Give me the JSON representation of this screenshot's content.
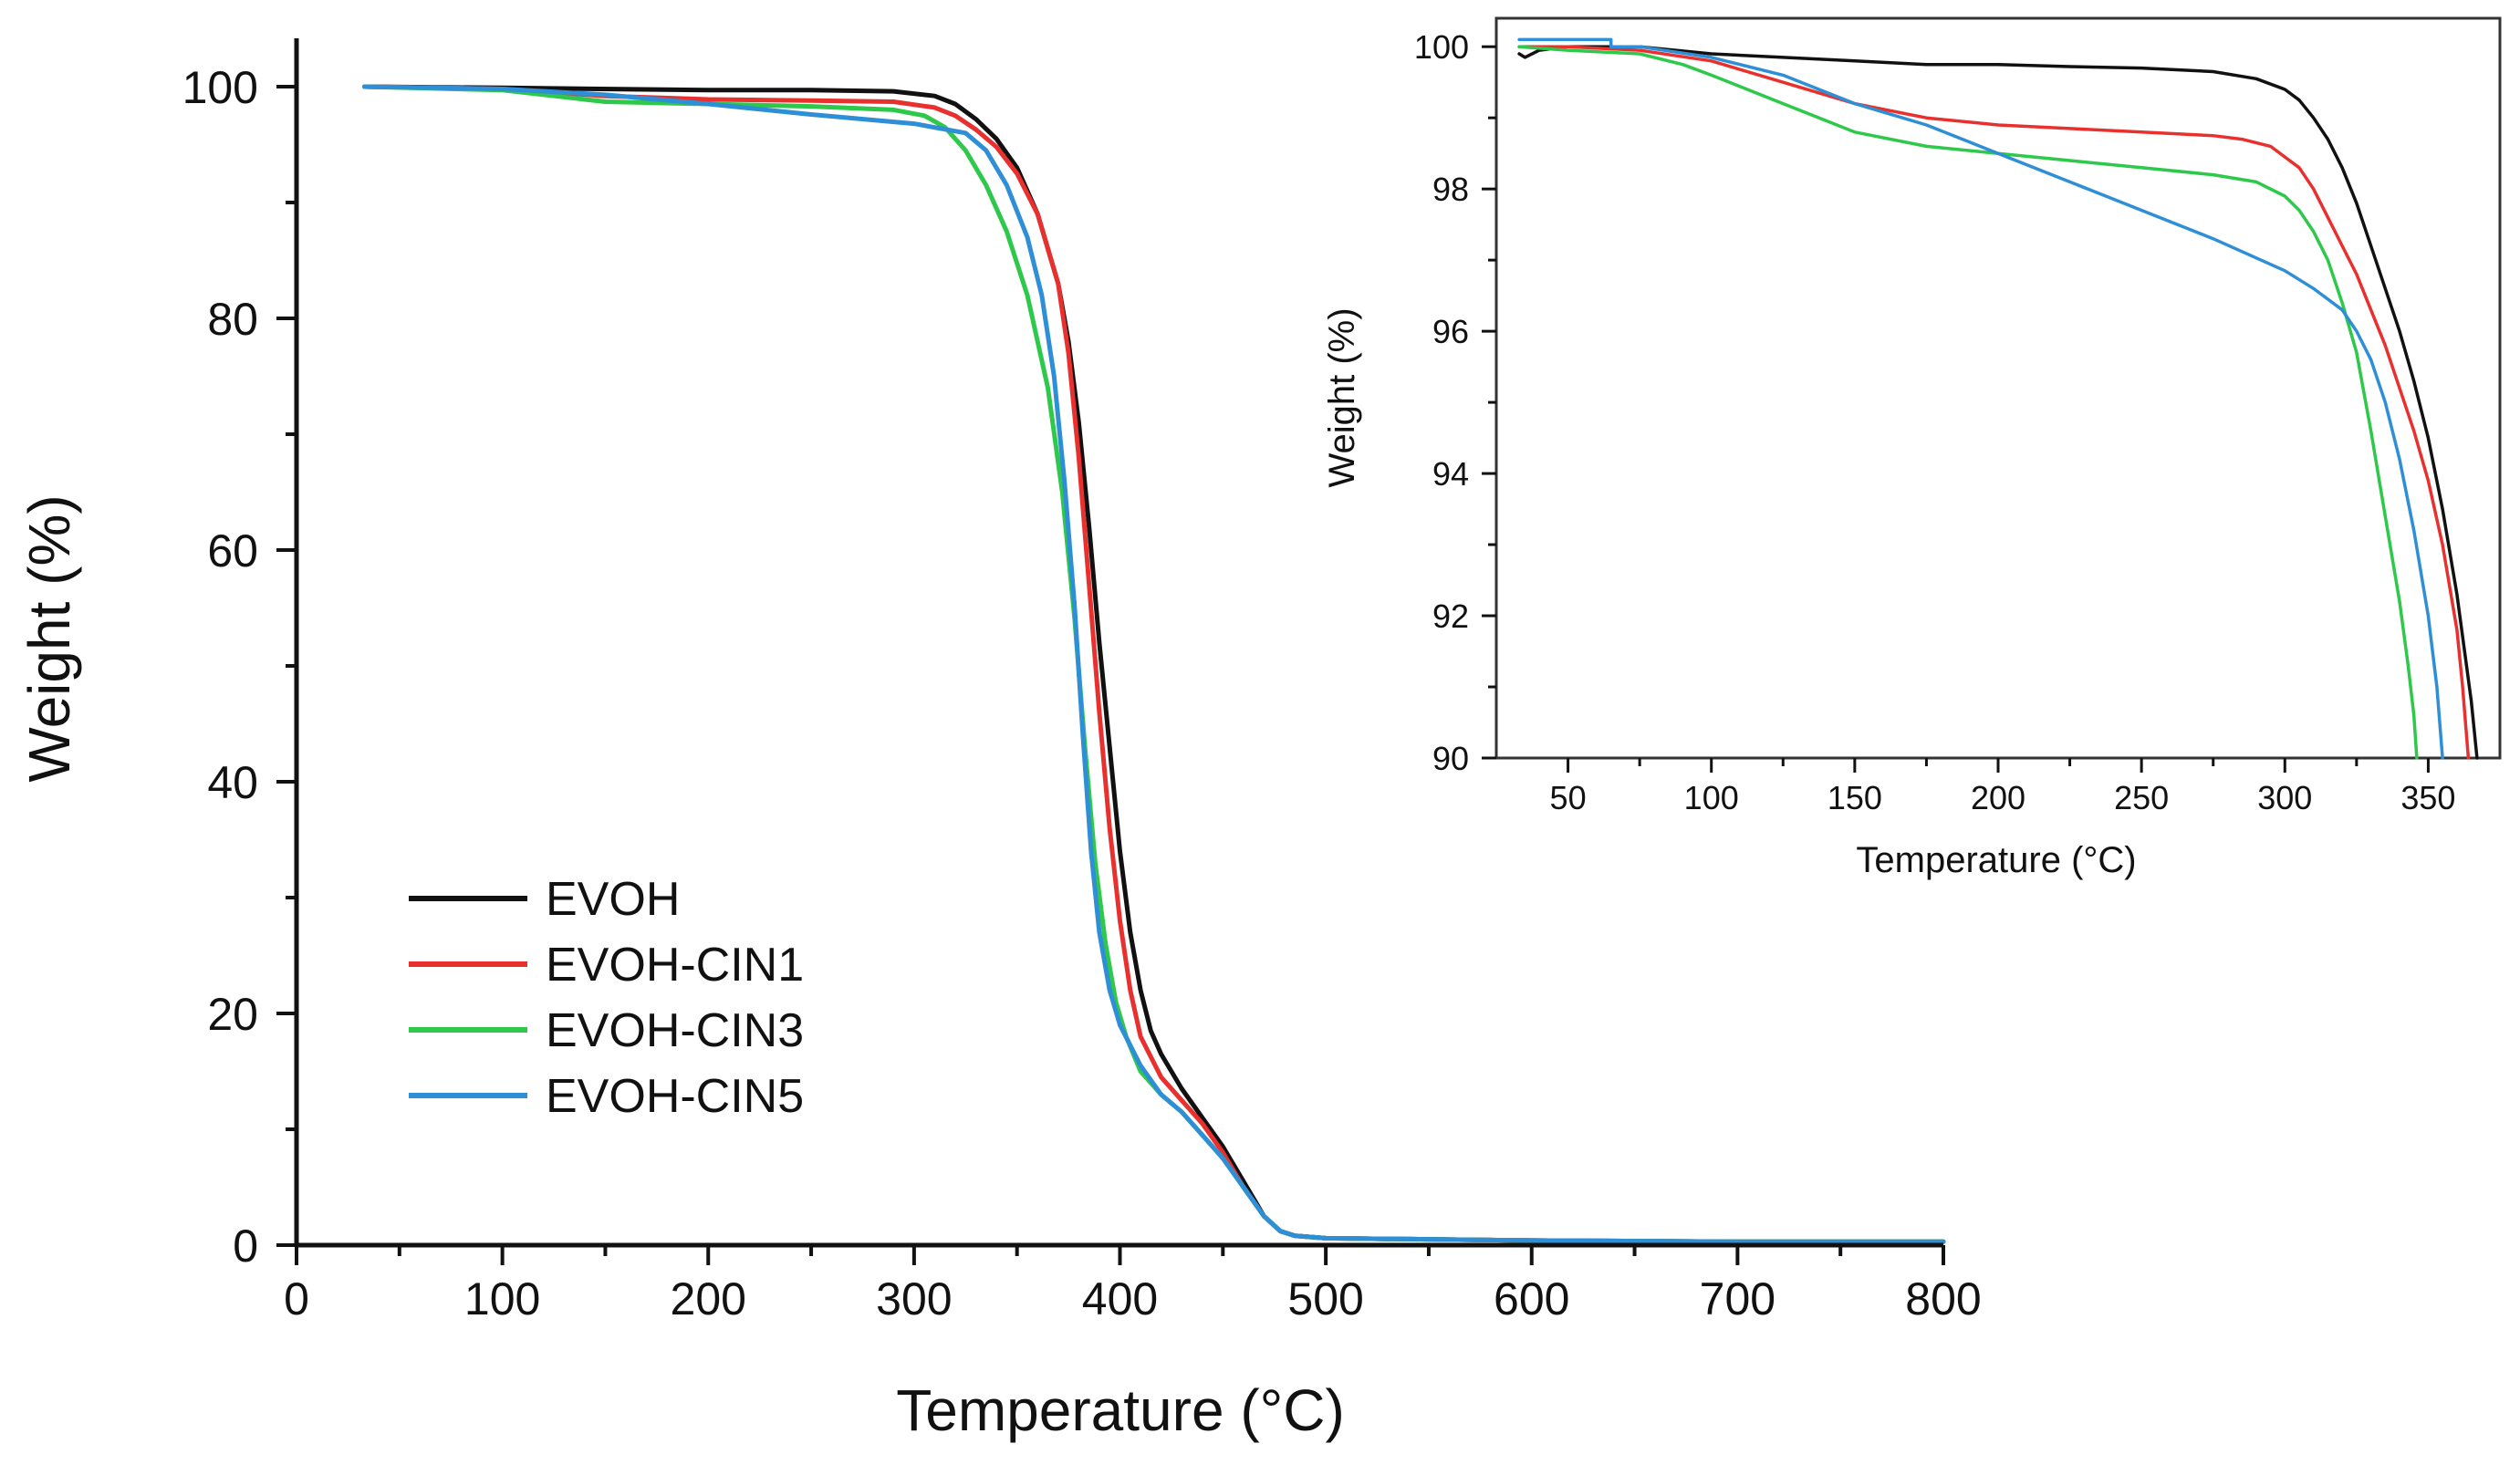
{
  "chart_data": [
    {
      "type": "line",
      "title": "",
      "xlabel": "Temperature (°C)",
      "ylabel": "Weight (%)",
      "xlim": [
        0,
        800
      ],
      "ylim": [
        0,
        100
      ],
      "xticks": [
        0,
        100,
        200,
        300,
        400,
        500,
        600,
        700,
        800
      ],
      "yticks": [
        0,
        20,
        40,
        60,
        80,
        100
      ],
      "grid": false,
      "legend_position": "lower-left",
      "series": [
        {
          "name": "EVOH",
          "color": "#111111",
          "x": [
            33,
            100,
            200,
            250,
            290,
            310,
            320,
            330,
            340,
            350,
            360,
            370,
            375,
            380,
            385,
            390,
            395,
            400,
            405,
            410,
            415,
            420,
            430,
            440,
            450,
            460,
            470,
            478,
            485,
            500,
            600,
            700,
            800
          ],
          "y": [
            100,
            99.9,
            99.7,
            99.7,
            99.6,
            99.2,
            98.5,
            97.2,
            95.5,
            93,
            89,
            83,
            78,
            71,
            62,
            52,
            43,
            34,
            27,
            22,
            18.5,
            16.5,
            13.5,
            11,
            8.5,
            5.5,
            2.5,
            1.2,
            0.8,
            0.6,
            0.4,
            0.3,
            0.3
          ]
        },
        {
          "name": "EVOH-CIN1",
          "color": "#e8312f",
          "x": [
            33,
            100,
            150,
            200,
            250,
            290,
            310,
            320,
            330,
            340,
            350,
            360,
            370,
            375,
            380,
            385,
            390,
            395,
            400,
            405,
            410,
            420,
            430,
            440,
            450,
            460,
            470,
            478,
            485,
            500,
            600,
            700,
            800
          ],
          "y": [
            100,
            99.8,
            99.2,
            98.9,
            98.8,
            98.7,
            98.2,
            97.5,
            96.3,
            94.8,
            92.5,
            89,
            83,
            77,
            68,
            57,
            46,
            36,
            28,
            22,
            18,
            14.5,
            12.5,
            10.5,
            8,
            5,
            2.5,
            1.2,
            0.8,
            0.6,
            0.4,
            0.3,
            0.3
          ]
        },
        {
          "name": "EVOH-CIN3",
          "color": "#2ec84a",
          "x": [
            33,
            100,
            150,
            200,
            250,
            290,
            305,
            315,
            325,
            335,
            345,
            355,
            365,
            372,
            378,
            383,
            388,
            393,
            398,
            403,
            410,
            420,
            430,
            440,
            450,
            460,
            470,
            478,
            485,
            500,
            600,
            700,
            800
          ],
          "y": [
            100,
            99.7,
            98.7,
            98.5,
            98.3,
            98.0,
            97.5,
            96.5,
            94.5,
            91.5,
            87.5,
            82,
            74,
            65,
            54,
            43,
            33,
            26,
            21,
            18,
            15,
            13,
            11.5,
            9.5,
            7.5,
            5,
            2.5,
            1.2,
            0.8,
            0.6,
            0.4,
            0.3,
            0.3
          ]
        },
        {
          "name": "EVOH-CIN5",
          "color": "#2f8fd6",
          "x": [
            33,
            100,
            150,
            200,
            250,
            300,
            325,
            335,
            345,
            355,
            362,
            368,
            373,
            378,
            382,
            386,
            390,
            395,
            400,
            410,
            420,
            430,
            440,
            450,
            460,
            470,
            478,
            485,
            500,
            600,
            700,
            800
          ],
          "y": [
            100,
            99.8,
            99.3,
            98.5,
            97.6,
            96.8,
            96,
            94.5,
            91.5,
            87,
            82,
            75,
            66,
            55,
            44,
            34,
            27,
            22,
            19,
            15.5,
            13,
            11.5,
            9.5,
            7.5,
            5,
            2.5,
            1.2,
            0.8,
            0.6,
            0.4,
            0.3,
            0.3
          ]
        }
      ]
    },
    {
      "type": "line",
      "title": "",
      "xlabel": "Temperature (°C)",
      "ylabel": "Weight (%)",
      "xlim": [
        25,
        375
      ],
      "ylim": [
        90,
        100.4
      ],
      "xticks": [
        50,
        100,
        150,
        200,
        250,
        300,
        350
      ],
      "yticks": [
        90,
        92,
        94,
        96,
        98,
        100
      ],
      "grid": false,
      "legend_position": "none",
      "series": [
        {
          "name": "EVOH",
          "color": "#111111",
          "x": [
            33,
            35,
            40,
            50,
            75,
            100,
            125,
            150,
            175,
            200,
            225,
            250,
            275,
            290,
            300,
            305,
            310,
            315,
            320,
            325,
            330,
            335,
            340,
            345,
            350,
            355,
            360,
            365,
            367
          ],
          "y": [
            99.9,
            99.85,
            99.95,
            100,
            100,
            99.9,
            99.85,
            99.8,
            99.75,
            99.75,
            99.72,
            99.7,
            99.65,
            99.55,
            99.4,
            99.25,
            99.0,
            98.7,
            98.3,
            97.8,
            97.2,
            96.6,
            96.0,
            95.3,
            94.5,
            93.5,
            92.3,
            90.8,
            90
          ]
        },
        {
          "name": "EVOH-CIN1",
          "color": "#e8312f",
          "x": [
            33,
            50,
            75,
            100,
            125,
            150,
            175,
            200,
            225,
            250,
            275,
            285,
            295,
            300,
            305,
            310,
            315,
            320,
            325,
            330,
            335,
            340,
            345,
            350,
            355,
            360,
            362,
            364
          ],
          "y": [
            100,
            100,
            99.95,
            99.8,
            99.5,
            99.2,
            99.0,
            98.9,
            98.85,
            98.8,
            98.75,
            98.7,
            98.6,
            98.45,
            98.3,
            98.0,
            97.6,
            97.2,
            96.8,
            96.3,
            95.8,
            95.2,
            94.6,
            93.9,
            93.0,
            91.8,
            91.0,
            90
          ]
        },
        {
          "name": "EVOH-CIN3",
          "color": "#2ec84a",
          "x": [
            33,
            50,
            75,
            90,
            100,
            125,
            150,
            175,
            200,
            225,
            250,
            275,
            290,
            300,
            305,
            310,
            315,
            320,
            325,
            330,
            335,
            340,
            343,
            345,
            346
          ],
          "y": [
            100,
            99.95,
            99.9,
            99.75,
            99.6,
            99.2,
            98.8,
            98.6,
            98.5,
            98.4,
            98.3,
            98.2,
            98.1,
            97.9,
            97.7,
            97.4,
            97.0,
            96.4,
            95.7,
            94.6,
            93.4,
            92.2,
            91.3,
            90.6,
            90
          ]
        },
        {
          "name": "EVOH-CIN5",
          "color": "#2f8fd6",
          "x": [
            33,
            65,
            65,
            75,
            100,
            125,
            150,
            175,
            200,
            225,
            250,
            275,
            300,
            310,
            320,
            325,
            330,
            335,
            340,
            345,
            350,
            353,
            355
          ],
          "y": [
            100.1,
            100.1,
            100.0,
            100.0,
            99.85,
            99.6,
            99.2,
            98.9,
            98.5,
            98.1,
            97.7,
            97.3,
            96.85,
            96.6,
            96.3,
            96.0,
            95.6,
            95.0,
            94.2,
            93.2,
            92.0,
            91.0,
            90
          ]
        }
      ]
    }
  ]
}
